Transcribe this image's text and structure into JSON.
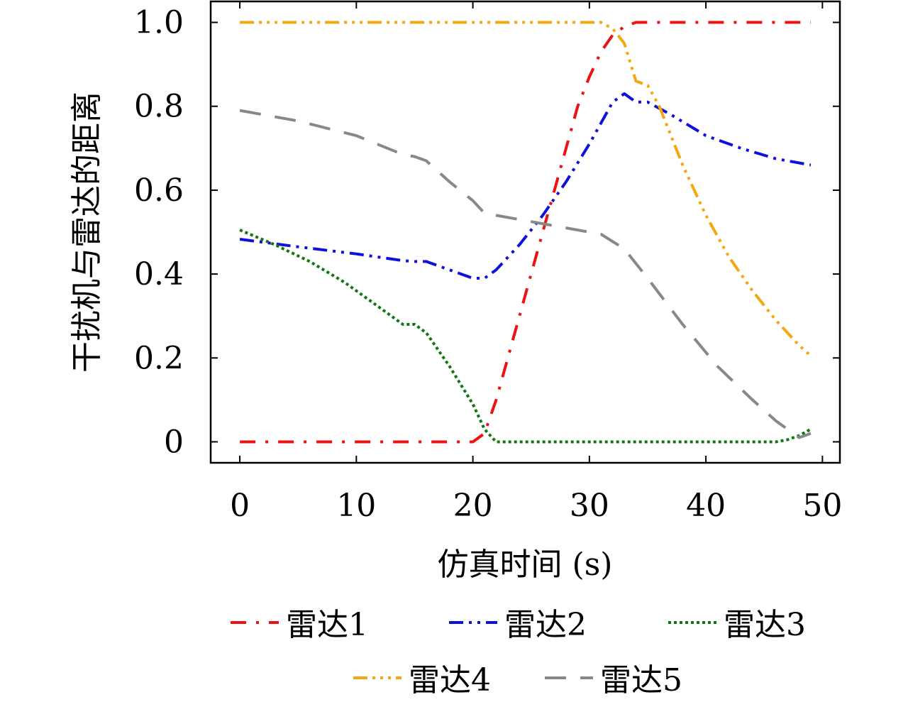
{
  "chart_data": {
    "type": "line",
    "xlabel": "仿真时间 (s)",
    "ylabel": "干扰机与雷达的距离",
    "xlim": [
      -2.5,
      51.5
    ],
    "ylim": [
      -0.05,
      1.05
    ],
    "xticks": [
      0,
      10,
      20,
      30,
      40,
      50
    ],
    "yticks": [
      0,
      0.2,
      0.4,
      0.6,
      0.8,
      1.0
    ],
    "xtick_labels": [
      "0",
      "10",
      "20",
      "30",
      "40",
      "50"
    ],
    "ytick_labels": [
      "0",
      "0.2",
      "0.4",
      "0.6",
      "0.8",
      "1.0"
    ],
    "grid": false,
    "legend_position": "bottom",
    "series": [
      {
        "name": "雷达1",
        "color": "#ee1111",
        "style": "dashdot",
        "points": [
          [
            0,
            0
          ],
          [
            20,
            0
          ],
          [
            21,
            0.02
          ],
          [
            22,
            0.1
          ],
          [
            23,
            0.2
          ],
          [
            24,
            0.3
          ],
          [
            25,
            0.4
          ],
          [
            26,
            0.5
          ],
          [
            27,
            0.6
          ],
          [
            28,
            0.7
          ],
          [
            29,
            0.8
          ],
          [
            30,
            0.87
          ],
          [
            31,
            0.93
          ],
          [
            32,
            0.97
          ],
          [
            33,
            0.99
          ],
          [
            34,
            1.0
          ],
          [
            49,
            1.0
          ]
        ]
      },
      {
        "name": "雷达2",
        "color": "#1010dd",
        "style": "dashdotdot",
        "points": [
          [
            0,
            0.483
          ],
          [
            5,
            0.465
          ],
          [
            10,
            0.448
          ],
          [
            14,
            0.432
          ],
          [
            15,
            0.43
          ],
          [
            16,
            0.43
          ],
          [
            18,
            0.41
          ],
          [
            20,
            0.39
          ],
          [
            21,
            0.39
          ],
          [
            22,
            0.41
          ],
          [
            24,
            0.47
          ],
          [
            26,
            0.54
          ],
          [
            28,
            0.62
          ],
          [
            30,
            0.71
          ],
          [
            32,
            0.81
          ],
          [
            33,
            0.83
          ],
          [
            34,
            0.81
          ],
          [
            35,
            0.81
          ],
          [
            37,
            0.78
          ],
          [
            40,
            0.73
          ],
          [
            43,
            0.7
          ],
          [
            46,
            0.675
          ],
          [
            49,
            0.66
          ]
        ]
      },
      {
        "name": "雷达3",
        "color": "#117711",
        "style": "dotted",
        "points": [
          [
            0,
            0.505
          ],
          [
            3,
            0.47
          ],
          [
            6,
            0.43
          ],
          [
            9,
            0.38
          ],
          [
            11,
            0.34
          ],
          [
            13,
            0.3
          ],
          [
            14,
            0.28
          ],
          [
            15,
            0.28
          ],
          [
            16,
            0.26
          ],
          [
            18,
            0.18
          ],
          [
            20,
            0.09
          ],
          [
            21,
            0.03
          ],
          [
            22,
            0.0
          ],
          [
            30,
            0.0
          ],
          [
            40,
            0.0
          ],
          [
            46,
            0.0
          ],
          [
            47,
            0.005
          ],
          [
            48,
            0.015
          ],
          [
            49,
            0.03
          ]
        ]
      },
      {
        "name": "雷达4",
        "color": "#f3a712",
        "style": "dashdotdotdot",
        "points": [
          [
            0,
            1.0
          ],
          [
            31,
            1.0
          ],
          [
            32,
            0.985
          ],
          [
            33,
            0.95
          ],
          [
            34,
            0.86
          ],
          [
            35,
            0.85
          ],
          [
            36,
            0.8
          ],
          [
            38,
            0.66
          ],
          [
            40,
            0.54
          ],
          [
            42,
            0.44
          ],
          [
            44,
            0.36
          ],
          [
            46,
            0.29
          ],
          [
            48,
            0.23
          ],
          [
            49,
            0.205
          ]
        ]
      },
      {
        "name": "雷达5",
        "color": "#888888",
        "style": "dashed",
        "points": [
          [
            0,
            0.79
          ],
          [
            5,
            0.765
          ],
          [
            10,
            0.73
          ],
          [
            14,
            0.685
          ],
          [
            15,
            0.68
          ],
          [
            16,
            0.67
          ],
          [
            18,
            0.62
          ],
          [
            20,
            0.575
          ],
          [
            21,
            0.545
          ],
          [
            22,
            0.54
          ],
          [
            25,
            0.525
          ],
          [
            28,
            0.51
          ],
          [
            31,
            0.495
          ],
          [
            33,
            0.46
          ],
          [
            35,
            0.39
          ],
          [
            38,
            0.28
          ],
          [
            41,
            0.18
          ],
          [
            44,
            0.1
          ],
          [
            46,
            0.05
          ],
          [
            48,
            0.01
          ],
          [
            49,
            0.02
          ]
        ]
      }
    ]
  }
}
